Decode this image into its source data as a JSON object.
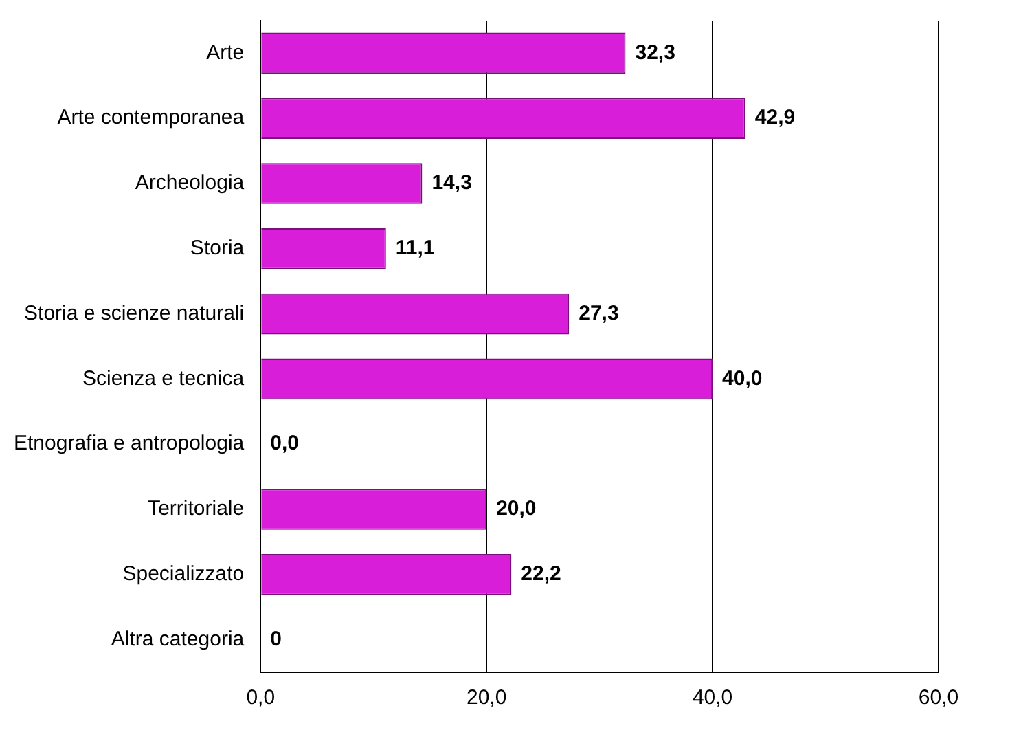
{
  "chart_data": {
    "type": "bar",
    "orientation": "horizontal",
    "categories": [
      "Arte",
      "Arte contemporanea",
      "Archeologia",
      "Storia",
      "Storia e scienze naturali",
      "Scienza e tecnica",
      "Etnografia e antropologia",
      "Territoriale",
      "Specializzato",
      "Altra categoria"
    ],
    "values": [
      32.3,
      42.9,
      14.3,
      11.1,
      27.3,
      40.0,
      0,
      20.0,
      22.2,
      0
    ],
    "value_labels": [
      "32,3",
      "42,9",
      "14,3",
      "11,1",
      "27,3",
      "40,0",
      "0,0",
      "20,0",
      "22,2",
      "0"
    ],
    "color": "#d81ed8",
    "xlim": [
      0,
      60
    ],
    "xticks": [
      {
        "value": 0,
        "label": "0,0"
      },
      {
        "value": 20,
        "label": "20,0"
      },
      {
        "value": 40,
        "label": "40,0"
      },
      {
        "value": 60,
        "label": "60,0"
      }
    ],
    "grid": "x"
  }
}
